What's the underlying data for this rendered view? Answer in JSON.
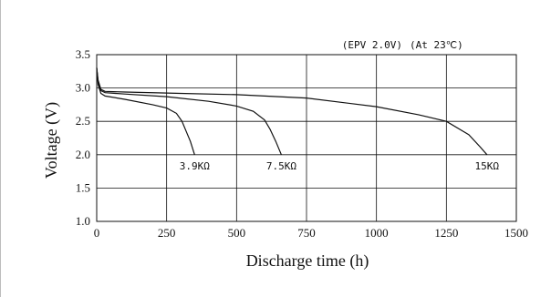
{
  "chart_data": {
    "type": "line",
    "title": "",
    "xlabel": "Discharge time (h)",
    "ylabel": "Voltage (V)",
    "xlim": [
      0,
      1500
    ],
    "ylim": [
      1.0,
      3.5
    ],
    "xticks": [
      "0",
      "250",
      "500",
      "750",
      "1000",
      "1250",
      "1500"
    ],
    "yticks": [
      "1.0",
      "1.5",
      "2.0",
      "2.5",
      "3.0",
      "3.5"
    ],
    "grid": true,
    "annotations": [
      "(EPV 2.0V)",
      "(At 23℃)"
    ],
    "series": [
      {
        "name": "3.9KΩ",
        "points": [
          [
            0,
            3.3
          ],
          [
            5,
            3.05
          ],
          [
            15,
            2.92
          ],
          [
            30,
            2.88
          ],
          [
            100,
            2.83
          ],
          [
            200,
            2.75
          ],
          [
            250,
            2.7
          ],
          [
            285,
            2.62
          ],
          [
            305,
            2.5
          ],
          [
            320,
            2.35
          ],
          [
            335,
            2.2
          ],
          [
            350,
            2.0
          ]
        ]
      },
      {
        "name": "7.5KΩ",
        "points": [
          [
            0,
            3.3
          ],
          [
            5,
            3.1
          ],
          [
            15,
            2.96
          ],
          [
            30,
            2.93
          ],
          [
            100,
            2.91
          ],
          [
            250,
            2.87
          ],
          [
            400,
            2.8
          ],
          [
            500,
            2.73
          ],
          [
            560,
            2.65
          ],
          [
            600,
            2.52
          ],
          [
            620,
            2.38
          ],
          [
            640,
            2.2
          ],
          [
            660,
            2.0
          ]
        ]
      },
      {
        "name": "15KΩ",
        "points": [
          [
            0,
            3.3
          ],
          [
            5,
            3.12
          ],
          [
            15,
            2.98
          ],
          [
            30,
            2.95
          ],
          [
            100,
            2.94
          ],
          [
            300,
            2.92
          ],
          [
            500,
            2.9
          ],
          [
            750,
            2.85
          ],
          [
            1000,
            2.72
          ],
          [
            1150,
            2.6
          ],
          [
            1250,
            2.5
          ],
          [
            1330,
            2.3
          ],
          [
            1370,
            2.12
          ],
          [
            1395,
            2.0
          ]
        ]
      }
    ]
  }
}
